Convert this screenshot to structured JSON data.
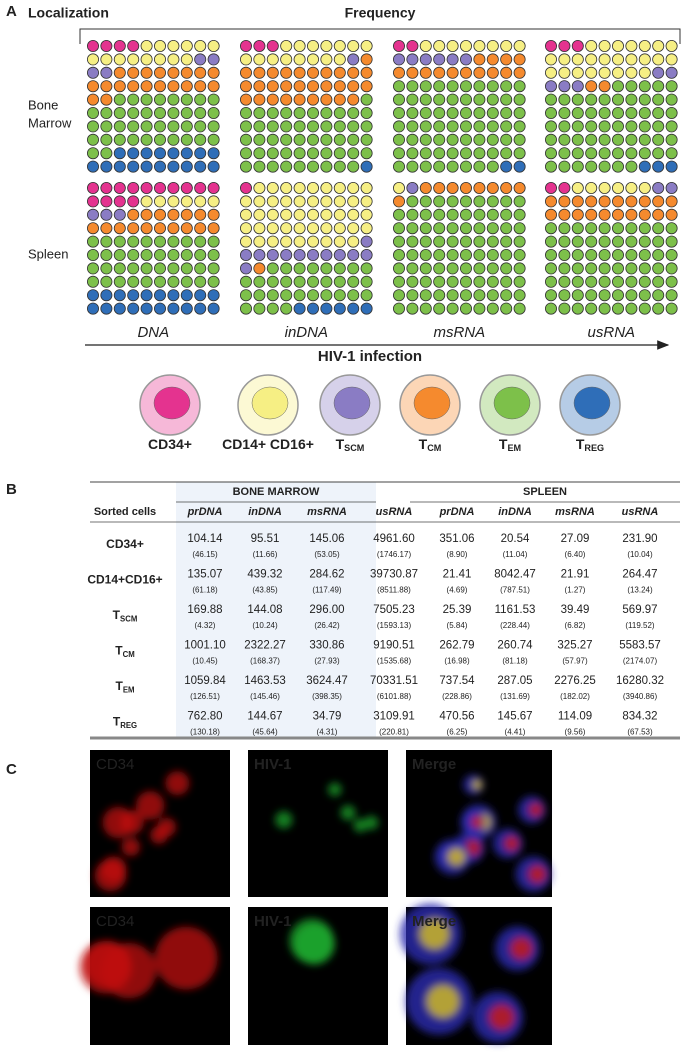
{
  "panel_a": {
    "label": "A",
    "localization_title": "Localization",
    "frequency_title": "Frequency",
    "localizations": [
      {
        "lines": [
          "Bone",
          "Marrow"
        ]
      },
      {
        "lines": [
          "Spleen"
        ]
      }
    ],
    "stages": [
      "DNA",
      "inDNA",
      "msRNA",
      "usRNA"
    ],
    "axis_label": "HIV-1 infection",
    "cell_types": [
      {
        "main": "CD34+",
        "color": "#e4338f"
      },
      {
        "main": "CD14+ CD16+",
        "color": "#f6ef84"
      },
      {
        "main": "T",
        "sub": "SCM",
        "color": "#8a7cc4"
      },
      {
        "main": "T",
        "sub": "CM",
        "color": "#f58a2e"
      },
      {
        "main": "T",
        "sub": "EM",
        "color": "#7dc04a"
      },
      {
        "main": "T",
        "sub": "REG",
        "color": "#2f6eb8"
      }
    ],
    "counts": [
      [
        [
          4,
          14,
          4,
          20,
          40,
          18
        ],
        [
          3,
          15,
          1,
          30,
          50,
          1
        ],
        [
          2,
          8,
          6,
          14,
          68,
          2
        ],
        [
          3,
          25,
          5,
          2,
          62,
          3
        ]
      ],
      [
        [
          14,
          6,
          3,
          17,
          40,
          20
        ],
        [
          1,
          48,
          12,
          1,
          32,
          6
        ],
        [
          0,
          1,
          1,
          9,
          89,
          0
        ],
        [
          2,
          6,
          2,
          20,
          70,
          0
        ]
      ]
    ]
  },
  "panel_b": {
    "label": "B",
    "groups": [
      "BONE MARROW",
      "SPLEEN"
    ],
    "header": [
      "Sorted cells",
      "prDNA",
      "inDNA",
      "msRNA",
      "usRNA",
      "prDNA",
      "inDNA",
      "msRNA",
      "usRNA"
    ],
    "rows": [
      {
        "cell": {
          "main": "CD34+"
        },
        "values": [
          "104.14",
          "95.51",
          "145.06",
          "4961.60",
          "351.06",
          "20.54",
          "27.09",
          "231.90"
        ],
        "sd": [
          "(46.15)",
          "(11.66)",
          "(53.05)",
          "(1746.17)",
          "(8.90)",
          "(11.04)",
          "(6.40)",
          "(10.04)"
        ]
      },
      {
        "cell": {
          "main": "CD14+CD16+"
        },
        "values": [
          "135.07",
          "439.32",
          "284.62",
          "39730.87",
          "21.41",
          "8042.47",
          "21.91",
          "264.47"
        ],
        "sd": [
          "(61.18)",
          "(43.85)",
          "(117.49)",
          "(8511.88)",
          "(4.69)",
          "(787.51)",
          "(1.27)",
          "(13.24)"
        ]
      },
      {
        "cell": {
          "main": "T",
          "sub": "SCM"
        },
        "values": [
          "169.88",
          "144.08",
          "296.00",
          "7505.23",
          "25.39",
          "1161.53",
          "39.49",
          "569.97"
        ],
        "sd": [
          "(4.32)",
          "(10.24)",
          "(26.42)",
          "(1593.13)",
          "(5.84)",
          "(228.44)",
          "(6.82)",
          "(119.52)"
        ]
      },
      {
        "cell": {
          "main": "T",
          "sub": "CM"
        },
        "values": [
          "1001.10",
          "2322.27",
          "330.86",
          "9190.51",
          "262.79",
          "260.74",
          "325.27",
          "5583.57"
        ],
        "sd": [
          "(10.45)",
          "(168.37)",
          "(27.93)",
          "(1535.68)",
          "(16.98)",
          "(81.18)",
          "(57.97)",
          "(2174.07)"
        ]
      },
      {
        "cell": {
          "main": "T",
          "sub": "EM"
        },
        "values": [
          "1059.84",
          "1463.53",
          "3624.47",
          "70331.51",
          "737.54",
          "287.05",
          "2276.25",
          "16280.32"
        ],
        "sd": [
          "(126.51)",
          "(145.46)",
          "(398.35)",
          "(6101.88)",
          "(228.86)",
          "(131.69)",
          "(182.02)",
          "(3940.86)"
        ]
      },
      {
        "cell": {
          "main": "T",
          "sub": "REG"
        },
        "values": [
          "762.80",
          "144.67",
          "34.79",
          "3109.91",
          "470.56",
          "145.67",
          "114.09",
          "834.32"
        ],
        "sd": [
          "(130.18)",
          "(45.64)",
          "(4.31)",
          "(220.81)",
          "(6.25)",
          "(4.41)",
          "(9.56)",
          "(67.53)"
        ]
      }
    ]
  },
  "panel_c": {
    "label": "C",
    "images": [
      {
        "channel": "CD34",
        "color": "#ff2a2a"
      },
      {
        "channel": "HIV-1",
        "color": "#2fd44a"
      },
      {
        "channel": "Merge",
        "color": "#ffffff"
      },
      {
        "channel": "CD34",
        "color": "#ff2a2a"
      },
      {
        "channel": "HIV-1",
        "color": "#2fd44a"
      },
      {
        "channel": "Merge",
        "color": "#ffffff"
      }
    ]
  }
}
